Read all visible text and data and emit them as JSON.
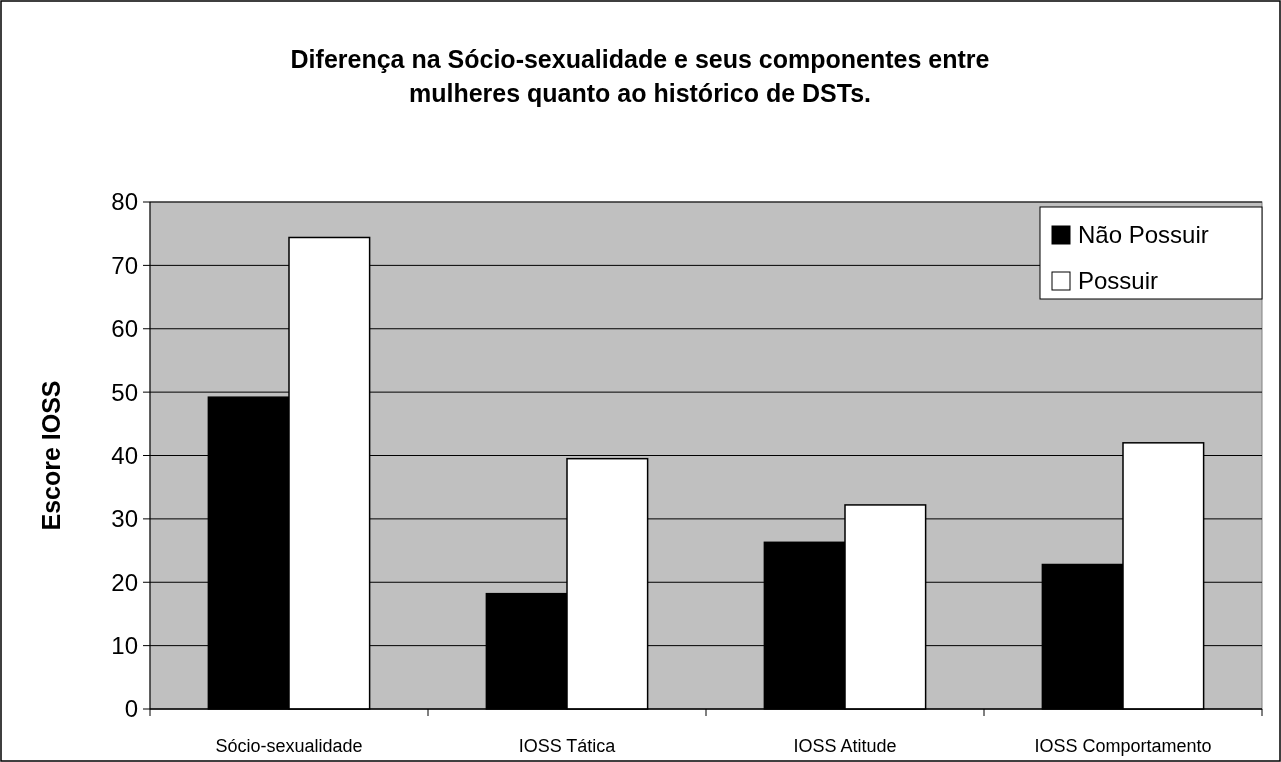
{
  "chart_data": {
    "type": "bar",
    "title": "Diferença na Sócio-sexualidade e seus componentes entre\nmulheres quanto ao histórico de DSTs.",
    "ylabel": "Escore IOSS",
    "categories": [
      "Sócio-sexualidade",
      "IOSS Tática",
      "IOSS Atitude",
      "IOSS Comportamento"
    ],
    "series": [
      {
        "name": "Não Possuir",
        "color": "#000000",
        "values": [
          49.2,
          18.2,
          26.3,
          22.8
        ]
      },
      {
        "name": "Possuir",
        "color": "#ffffff",
        "values": [
          74.4,
          39.5,
          32.2,
          42.0
        ]
      }
    ],
    "ylim": [
      0,
      80
    ],
    "yticks": [
      0,
      10,
      20,
      30,
      40,
      50,
      60,
      70,
      80
    ],
    "grid": "y",
    "legend": "top right"
  }
}
